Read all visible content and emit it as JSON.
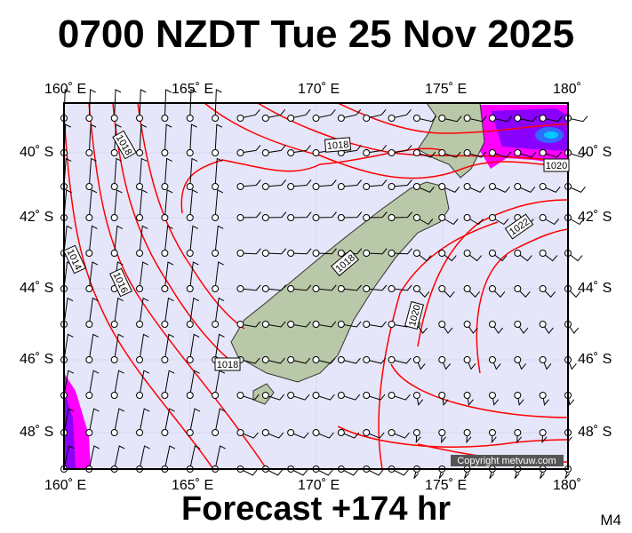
{
  "title": "0700 NZDT Tue 25 Nov 2025",
  "footer": "Forecast +174 hr",
  "model_label": "M4",
  "copyright": "Copyright metvuw.com",
  "lon_labels": [
    "160˚ E",
    "165˚ E",
    "170˚ E",
    "175˚ E",
    "180˚"
  ],
  "lat_labels": [
    "40˚ S",
    "42˚ S",
    "44˚ S",
    "46˚ S",
    "48˚ S"
  ],
  "isobar_labels": [
    "1018",
    "1018",
    "1014",
    "1016",
    "1018",
    "1018",
    "1020",
    "1022",
    "1020"
  ],
  "colors": {
    "ocean": "#e6e6fa",
    "isobar": "#ff0000",
    "land": "#b9c8a8",
    "rain_heavy": "#8a00ff",
    "rain_light": "#ff00ff",
    "rain_core": "#00a0ff"
  }
}
